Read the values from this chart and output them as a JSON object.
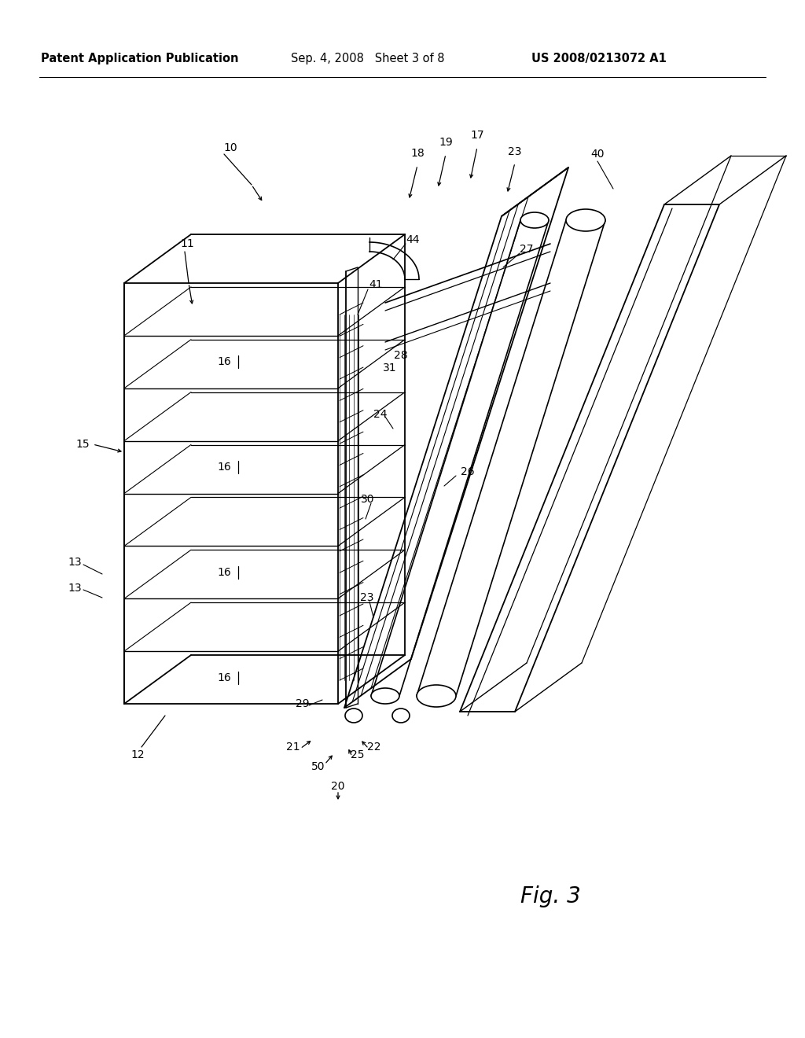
{
  "header_left": "Patent Application Publication",
  "header_center": "Sep. 4, 2008   Sheet 3 of 8",
  "header_right": "US 2008/0213072 A1",
  "fig_label": "Fig. 3",
  "bg_color": "#ffffff",
  "lc": "#000000",
  "header_fs": 10.5,
  "label_fs": 10,
  "fig_fs": 20,
  "n_shelves": 8,
  "n_shelf_labels": 4,
  "shelf_label_text": "16"
}
